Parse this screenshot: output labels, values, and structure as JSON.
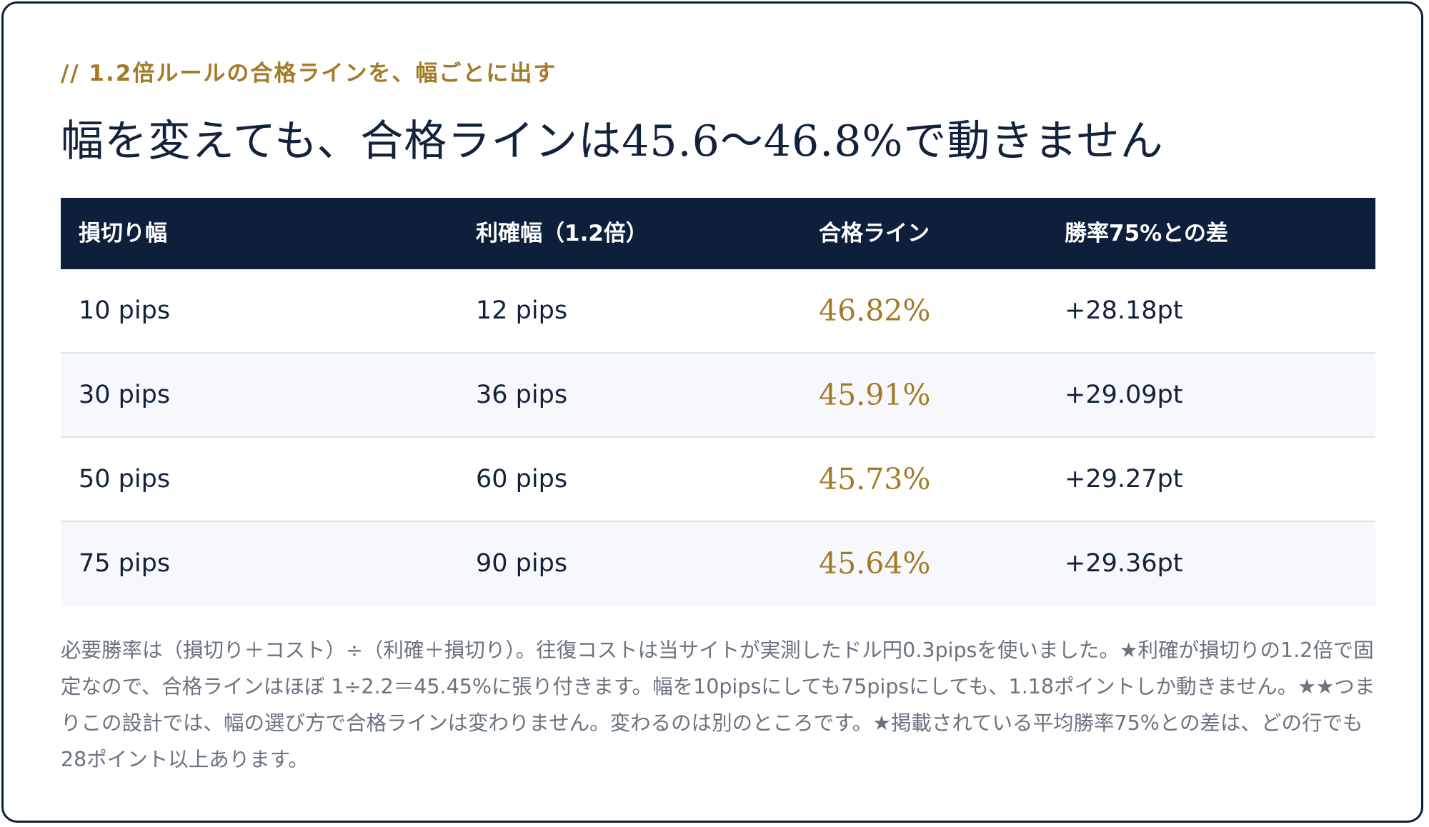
{
  "eyebrow": "// 1.2倍ルールの合格ラインを、幅ごとに出す",
  "headline": "幅を変えても、合格ラインは45.6〜46.8%で動きません",
  "table": {
    "headers": [
      "損切り幅",
      "利確幅（1.2倍）",
      "合格ライン",
      "勝率75%との差"
    ],
    "rows": [
      {
        "stop": "10 pips",
        "take": "12 pips",
        "line": "46.82%",
        "diff": "+28.18pt"
      },
      {
        "stop": "30 pips",
        "take": "36 pips",
        "line": "45.91%",
        "diff": "+29.09pt"
      },
      {
        "stop": "50 pips",
        "take": "60 pips",
        "line": "45.73%",
        "diff": "+29.27pt"
      },
      {
        "stop": "75 pips",
        "take": "90 pips",
        "line": "45.64%",
        "diff": "+29.36pt"
      }
    ]
  },
  "note": "必要勝率は（損切り＋コスト）÷（利確＋損切り）。往復コストは当サイトが実測したドル円0.3pipsを使いました。★利確が損切りの1.2倍で固定なので、合格ラインはほぼ 1÷2.2＝45.45%に張り付きます。幅を10pipsにしても75pipsにしても、1.18ポイントしか動きません。★★つまりこの設計では、幅の選び方で合格ラインは変わりません。変わるのは別のところです。★掲載されている平均勝率75%との差は、どの行でも28ポイント以上あります。",
  "colors": {
    "navy": "#0d1f3a",
    "gold": "#a37a26",
    "note_gray": "#6b7280"
  }
}
